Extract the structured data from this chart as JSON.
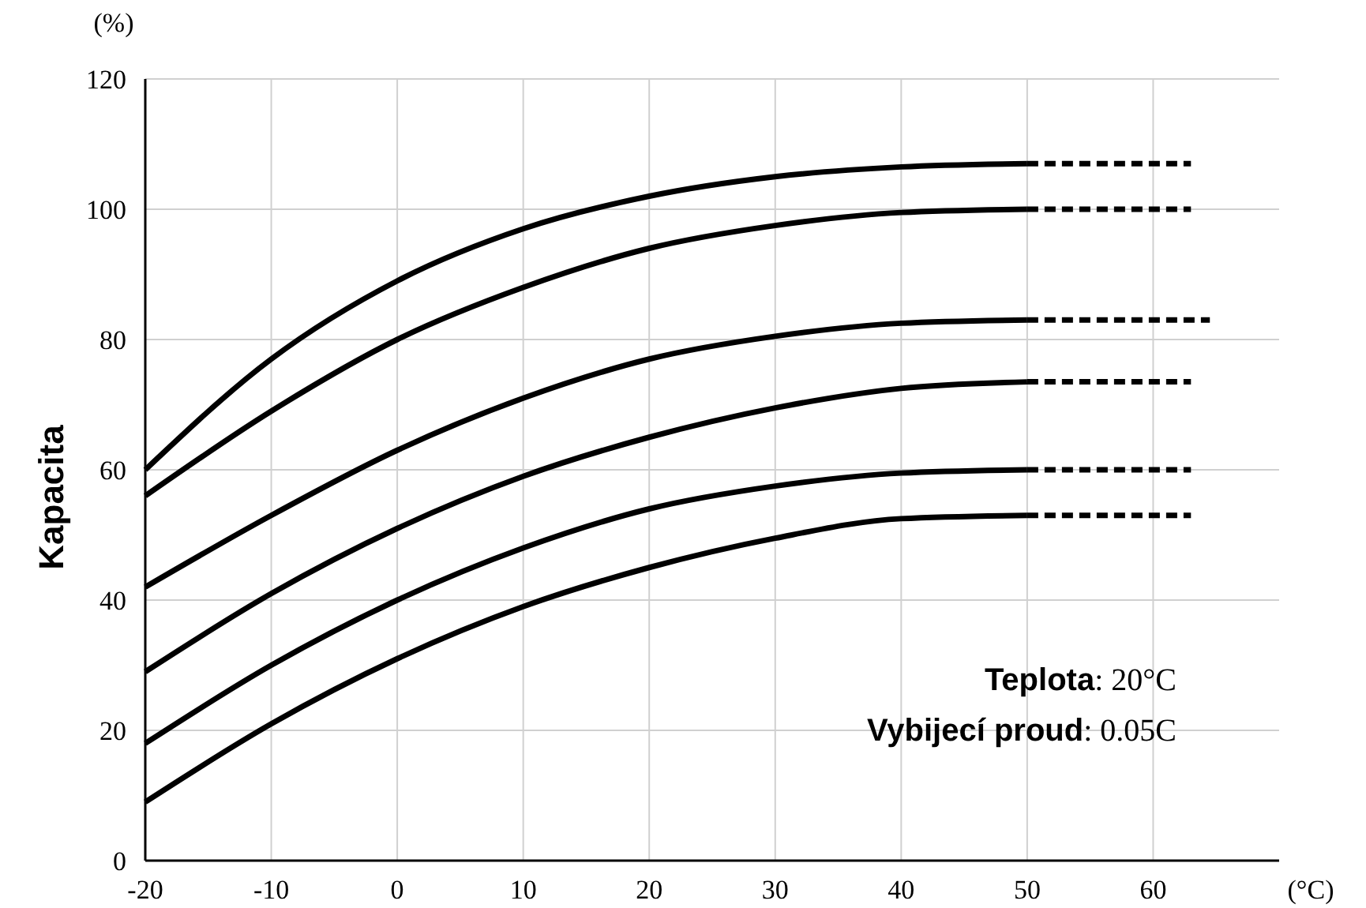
{
  "chart_data": {
    "type": "line",
    "xlabel": "(°C)",
    "ylabel": "Kapacita",
    "annotations": [
      "(%)",
      "Teplota: 20°C",
      "Vybijecí proud: 0.05C"
    ],
    "xlim": [
      -20,
      70
    ],
    "xticks": [
      -20,
      -10,
      0,
      10,
      20,
      30,
      40,
      50,
      60
    ],
    "ylim": [
      0,
      120
    ],
    "yticks": [
      0,
      20,
      40,
      60,
      80,
      100,
      120
    ],
    "grid": true,
    "marker": "none",
    "series": [
      {
        "color": "#000000",
        "x": [
          -20,
          -10,
          0,
          10,
          20,
          30,
          40,
          50
        ],
        "values": [
          60,
          77,
          89,
          97,
          102,
          105,
          106.5,
          107
        ],
        "line_style": "solid"
      },
      {
        "color": "#000000",
        "x": [
          -20,
          -10,
          0,
          10,
          20,
          30,
          40,
          50
        ],
        "values": [
          56,
          69,
          80,
          88,
          94,
          97.5,
          99.5,
          100
        ],
        "line_style": "solid"
      },
      {
        "color": "#000000",
        "x": [
          -20,
          -10,
          0,
          10,
          20,
          30,
          40,
          50
        ],
        "values": [
          42,
          53,
          63,
          71,
          77,
          80.5,
          82.5,
          83
        ],
        "line_style": "solid"
      },
      {
        "color": "#000000",
        "x": [
          -20,
          -10,
          0,
          10,
          20,
          30,
          40,
          50
        ],
        "values": [
          29,
          41,
          51,
          59,
          65,
          69.5,
          72.5,
          73.5
        ],
        "line_style": "solid"
      },
      {
        "color": "#000000",
        "x": [
          -20,
          -10,
          0,
          10,
          20,
          30,
          40,
          50
        ],
        "values": [
          18,
          30,
          40,
          48,
          54,
          57.5,
          59.5,
          60
        ],
        "line_style": "solid"
      },
      {
        "color": "#000000",
        "x": [
          -20,
          -10,
          0,
          10,
          20,
          30,
          40,
          50
        ],
        "values": [
          9,
          21,
          31,
          39,
          45,
          49.5,
          52.5,
          53
        ],
        "line_style": "solid"
      },
      {
        "color": "#000000",
        "x": [
          50,
          63
        ],
        "values": [
          107,
          107
        ],
        "line_style": "dashed"
      },
      {
        "color": "#000000",
        "x": [
          50,
          63
        ],
        "values": [
          100,
          100
        ],
        "line_style": "dashed"
      },
      {
        "color": "#000000",
        "x": [
          50,
          64.5
        ],
        "values": [
          83,
          83
        ],
        "line_style": "dashed"
      },
      {
        "color": "#000000",
        "x": [
          50,
          63
        ],
        "values": [
          73.5,
          73.5
        ],
        "line_style": "dashed"
      },
      {
        "color": "#000000",
        "x": [
          50,
          63
        ],
        "values": [
          60,
          60
        ],
        "line_style": "dashed"
      },
      {
        "color": "#000000",
        "x": [
          50,
          63
        ],
        "values": [
          53,
          53
        ],
        "line_style": "dashed"
      }
    ]
  }
}
